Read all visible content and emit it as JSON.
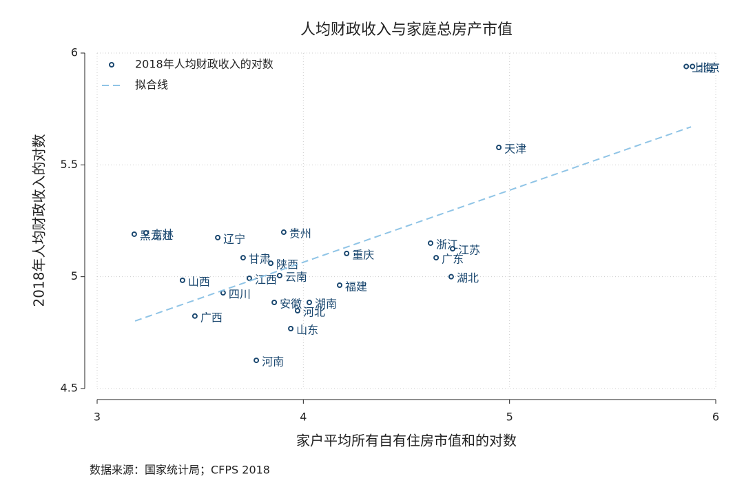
{
  "chart_data": {
    "type": "scatter",
    "title": "人均财政收入与家庭总房产市值",
    "x_label": "家户平均所有自有住房市值和的对数",
    "y_label": "2018年人均财政收入的对数",
    "note": "数据来源：国家统计局；CFPS 2018",
    "xlim": [
      3,
      6
    ],
    "ylim": [
      4.5,
      6
    ],
    "xticks": [
      3,
      4,
      5,
      6
    ],
    "yticks": [
      4.5,
      5,
      5.5,
      6
    ],
    "grid": true,
    "legend": "top-left",
    "series": [
      {
        "name": "2018年人均财政收入的对数",
        "color": "#1a476f",
        "mark": "circle",
        "labels": [
          "北京",
          "上海",
          "天津",
          "黑龙江",
          "吉林",
          "辽宁",
          "贵州",
          "浙江",
          "江苏",
          "广东",
          "湖北",
          "重庆",
          "甘肃",
          "陕西",
          "云南",
          "江西",
          "山西",
          "四川",
          "福建",
          "安徽",
          "湖南",
          "河北",
          "广西",
          "山东",
          "河南"
        ],
        "x": [
          5.887,
          5.857,
          4.948,
          3.18,
          3.237,
          3.585,
          3.905,
          4.617,
          4.724,
          4.644,
          4.717,
          4.21,
          3.708,
          3.842,
          3.885,
          3.738,
          3.414,
          3.611,
          4.176,
          3.859,
          4.029,
          3.972,
          3.474,
          3.939,
          3.772
        ],
        "values": [
          5.94,
          5.94,
          5.578,
          5.19,
          5.196,
          5.175,
          5.199,
          5.15,
          5.125,
          5.085,
          5.0,
          5.104,
          5.085,
          5.06,
          5.005,
          4.993,
          4.984,
          4.928,
          4.962,
          4.885,
          4.885,
          4.848,
          4.824,
          4.768,
          4.626
        ]
      },
      {
        "name": "拟合线",
        "color": "#8fc4e6",
        "mark": "dashed-line",
        "x": [
          3.184,
          5.88
        ],
        "values": [
          4.802,
          5.67
        ]
      }
    ]
  }
}
